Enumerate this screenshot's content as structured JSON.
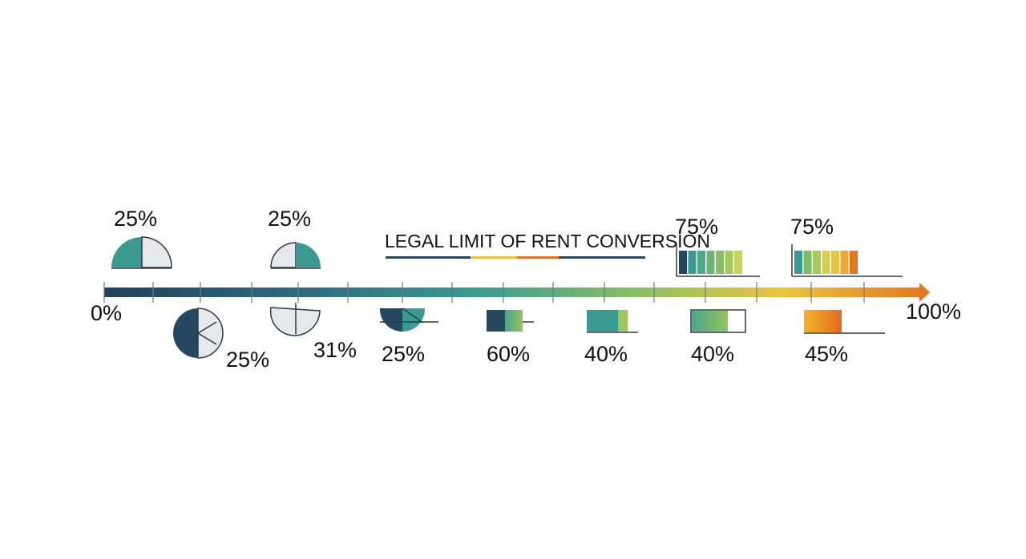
{
  "title": "LEGAL LIMIT OF RENT CONVERSION",
  "colors": {
    "navy": "#25475f",
    "teal": "#3a9a92",
    "green": "#8cc063",
    "yellow": "#ecc53e",
    "orange": "#e4761d",
    "light_gray": "#e6e9ec",
    "outline": "#2b3a46"
  },
  "axis": {
    "start_label": "0%",
    "end_label": "100%",
    "tick_count": 16
  },
  "chart_data": {
    "type": "timeline",
    "title": "LEGAL LIMIT OF RENT CONVERSION",
    "axis_range": [
      0,
      100
    ],
    "markers": [
      {
        "label": "25%",
        "value": 25,
        "shape": "half-pie",
        "placement": "above"
      },
      {
        "label": "25%",
        "value": 25,
        "shape": "pie",
        "placement": "below"
      },
      {
        "label": "25%",
        "value": 25,
        "shape": "half-pie",
        "placement": "above"
      },
      {
        "label": "31%",
        "value": 31,
        "shape": "pie",
        "placement": "below"
      },
      {
        "label": "25%",
        "value": 25,
        "shape": "half-pie",
        "placement": "below"
      },
      {
        "label": "60%",
        "value": 60,
        "shape": "bar",
        "placement": "below"
      },
      {
        "label": "40%",
        "value": 40,
        "shape": "bar",
        "placement": "below"
      },
      {
        "label": "40%",
        "value": 40,
        "shape": "bar",
        "placement": "below"
      },
      {
        "label": "45%",
        "value": 45,
        "shape": "bar",
        "placement": "below"
      },
      {
        "label": "75%",
        "value": 75,
        "shape": "segmented-bar",
        "placement": "above"
      },
      {
        "label": "75%",
        "value": 75,
        "shape": "segmented-bar",
        "placement": "above"
      }
    ]
  }
}
